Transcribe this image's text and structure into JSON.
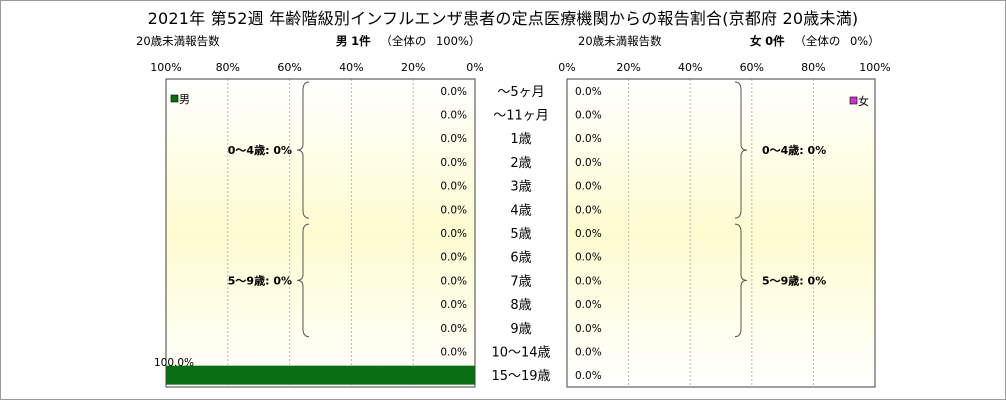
{
  "title": "2021年 第52週 年齢階級別インフルエンザ患者の定点医療機関からの報告割合(京都府 20歳未満)",
  "male_header": {
    "left_label": "20歳未満報告数",
    "name": "男",
    "count": "1件",
    "share_label": "（全体の",
    "share_value": "100%）"
  },
  "female_header": {
    "left_label": "20歳未満報告数",
    "name": "女",
    "count": "0件",
    "share_label": "（全体の",
    "share_value": "0%）"
  },
  "male_ticks": [
    "100%",
    "80%",
    "60%",
    "40%",
    "20%",
    "0%"
  ],
  "female_ticks": [
    "0%",
    "20%",
    "40%",
    "60%",
    "80%",
    "100%"
  ],
  "colors": {
    "male_bar": "#0a6e12",
    "male_legend": "#0a6e12",
    "female_legend": "#cc33cc",
    "bg_top": "#ffffff",
    "bg_mid": "#fdfcd0"
  },
  "chart_data": {
    "type": "bar",
    "orientation": "horizontal",
    "layout": "population-pyramid",
    "categories": [
      "～5ヶ月",
      "～11ヶ月",
      "1歳",
      "2歳",
      "3歳",
      "4歳",
      "5歳",
      "6歳",
      "7歳",
      "8歳",
      "9歳",
      "10～14歳",
      "15～19歳"
    ],
    "series": [
      {
        "name": "男",
        "values": [
          0.0,
          0.0,
          0.0,
          0.0,
          0.0,
          0.0,
          0.0,
          0.0,
          0.0,
          0.0,
          0.0,
          0.0,
          100.0
        ],
        "labels": [
          "0.0%",
          "0.0%",
          "0.0%",
          "0.0%",
          "0.0%",
          "0.0%",
          "0.0%",
          "0.0%",
          "0.0%",
          "0.0%",
          "0.0%",
          "0.0%",
          "100.0%"
        ]
      },
      {
        "name": "女",
        "values": [
          0.0,
          0.0,
          0.0,
          0.0,
          0.0,
          0.0,
          0.0,
          0.0,
          0.0,
          0.0,
          0.0,
          0.0,
          0.0
        ],
        "labels": [
          "0.0%",
          "0.0%",
          "0.0%",
          "0.0%",
          "0.0%",
          "0.0%",
          "0.0%",
          "0.0%",
          "0.0%",
          "0.0%",
          "0.0%",
          "0.0%",
          "0.0%"
        ]
      }
    ],
    "xlim": [
      0,
      100
    ],
    "grid": true,
    "group_annotations": {
      "male": [
        {
          "label": "0～4歳: 0%",
          "from": "～5ヶ月",
          "to": "4歳"
        },
        {
          "label": "5～9歳: 0%",
          "from": "5歳",
          "to": "9歳"
        }
      ],
      "female": [
        {
          "label": "0～4歳: 0%",
          "from": "～5ヶ月",
          "to": "4歳"
        },
        {
          "label": "5～9歳: 0%",
          "from": "5歳",
          "to": "9歳"
        }
      ]
    }
  }
}
